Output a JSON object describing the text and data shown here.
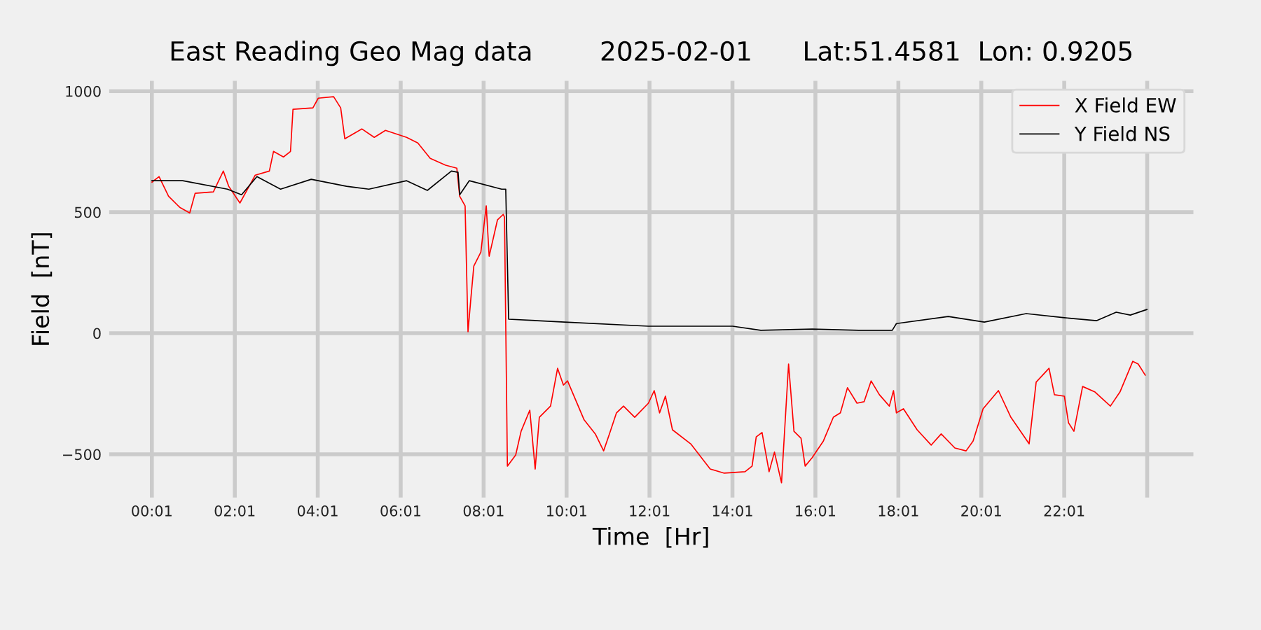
{
  "chart_data": {
    "type": "line",
    "title": "East Reading Geo Mag data        2025-02-01      Lat:51.4581  Lon: 0.9205",
    "xlabel": "Time  [Hr]",
    "ylabel": "Field  [nT]",
    "series": [
      {
        "name": "X Field EW",
        "color": "#ff0000",
        "x": [
          0.02,
          0.19,
          0.42,
          0.69,
          0.93,
          1.06,
          1.5,
          1.74,
          1.87,
          2.14,
          2.51,
          2.85,
          2.95,
          3.19,
          3.36,
          3.42,
          3.9,
          4.03,
          4.4,
          4.57,
          4.67,
          5.08,
          5.38,
          5.65,
          6.16,
          6.43,
          6.73,
          7.1,
          7.37,
          7.44,
          7.57,
          7.64,
          7.71,
          7.78,
          7.95,
          8.08,
          8.15,
          8.35,
          8.49,
          8.52,
          8.59,
          8.79,
          8.92,
          9.13,
          9.26,
          9.36,
          9.63,
          9.8,
          9.94,
          10.04,
          10.44,
          10.71,
          10.91,
          11.05,
          11.22,
          11.39,
          11.66,
          11.99,
          12.13,
          12.26,
          12.4,
          12.57,
          13.01,
          13.48,
          13.82,
          14.32,
          14.49,
          14.59,
          14.73,
          14.9,
          15.03,
          15.2,
          15.37,
          15.5,
          15.67,
          15.77,
          15.94,
          16.21,
          16.45,
          16.62,
          16.79,
          17.02,
          17.19,
          17.36,
          17.56,
          17.8,
          17.9,
          17.97,
          18.14,
          18.47,
          18.81,
          19.05,
          19.38,
          19.65,
          19.82,
          20.06,
          20.43,
          20.73,
          21.17,
          21.34,
          21.65,
          21.78,
          22.02,
          22.12,
          22.25,
          22.46,
          22.76,
          23.13,
          23.36,
          23.67,
          23.8,
          23.97
        ],
        "values": [
          624,
          647,
          566,
          520,
          497,
          578,
          584,
          670,
          607,
          538,
          653,
          670,
          751,
          728,
          751,
          925,
          931,
          971,
          977,
          931,
          803,
          844,
          809,
          838,
          809,
          786,
          722,
          694,
          682,
          566,
          526,
          6,
          145,
          277,
          335,
          526,
          318,
          468,
          491,
          480,
          -549,
          -503,
          -405,
          -318,
          -561,
          -347,
          -301,
          -145,
          -214,
          -197,
          -358,
          -416,
          -486,
          -416,
          -329,
          -301,
          -347,
          -289,
          -237,
          -329,
          -260,
          -399,
          -457,
          -561,
          -578,
          -572,
          -549,
          -428,
          -410,
          -572,
          -491,
          -618,
          -127,
          -405,
          -434,
          -549,
          -514,
          -445,
          -347,
          -329,
          -225,
          -289,
          -283,
          -197,
          -254,
          -301,
          -237,
          -329,
          -312,
          -399,
          -462,
          -416,
          -474,
          -486,
          -445,
          -312,
          -237,
          -347,
          -457,
          -202,
          -145,
          -254,
          -260,
          -370,
          -405,
          -220,
          -243,
          -301,
          -243,
          -116,
          -127,
          -173
        ]
      },
      {
        "name": "Y Field NS",
        "color": "#000000",
        "x": [
          0.02,
          0.76,
          1.84,
          2.18,
          2.55,
          3.12,
          3.86,
          4.71,
          5.25,
          6.16,
          6.66,
          7.24,
          7.4,
          7.44,
          7.67,
          8.45,
          8.55,
          8.62,
          9.97,
          11.99,
          14.02,
          14.7,
          15.94,
          17.06,
          17.87,
          17.97,
          19.22,
          20.09,
          21.1,
          22.02,
          22.8,
          23.27,
          23.61,
          24.01
        ],
        "values": [
          630,
          630,
          595,
          572,
          647,
          595,
          636,
          607,
          595,
          630,
          590,
          670,
          665,
          572,
          630,
          595,
          595,
          58,
          46,
          29,
          29,
          12,
          17,
          12,
          12,
          40,
          69,
          46,
          81,
          64,
          52,
          87,
          75,
          98
        ]
      }
    ],
    "xlim": [
      -1.03,
      25.15
    ],
    "xticks": [
      {
        "value": 0.017,
        "label": "00:01"
      },
      {
        "value": 2.017,
        "label": "02:01"
      },
      {
        "value": 4.017,
        "label": "04:01"
      },
      {
        "value": 6.017,
        "label": "06:01"
      },
      {
        "value": 8.017,
        "label": "08:01"
      },
      {
        "value": 10.017,
        "label": "10:01"
      },
      {
        "value": 12.017,
        "label": "12:01"
      },
      {
        "value": 14.017,
        "label": "14:01"
      },
      {
        "value": 16.017,
        "label": "16:01"
      },
      {
        "value": 18.017,
        "label": "18:01"
      },
      {
        "value": 20.017,
        "label": "20:01"
      },
      {
        "value": 22.017,
        "label": "22:01"
      },
      {
        "value": 24.017,
        "label": null
      }
    ],
    "ylim": [
      -682,
      1046
    ],
    "yticks": [
      {
        "value": -500,
        "label": "−500"
      },
      0,
      500,
      1000
    ],
    "grid": true,
    "legend": "top right",
    "marker": "none",
    "line_style": "solid"
  }
}
